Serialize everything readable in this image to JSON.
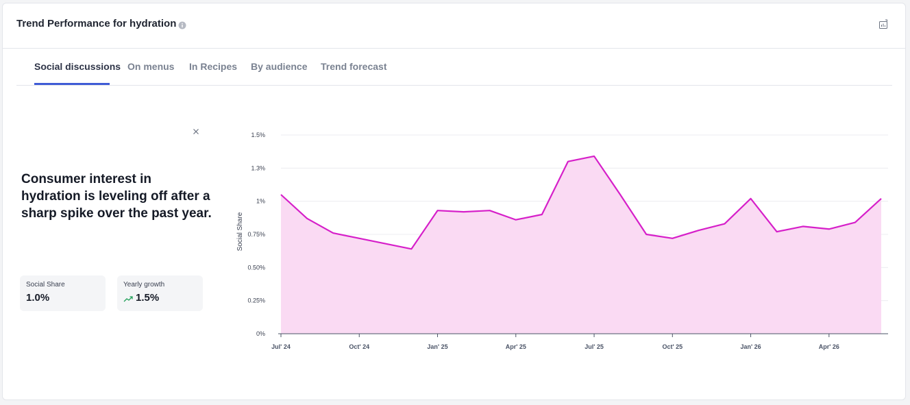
{
  "header": {
    "title": "Trend Performance for hydration",
    "info_icon": "info-circle-icon",
    "export_icon": "export-chart-icon"
  },
  "tabs": [
    {
      "label": "Social discussions",
      "active": true
    },
    {
      "label": "On menus",
      "active": false
    },
    {
      "label": "In Recipes",
      "active": false
    },
    {
      "label": "By audience",
      "active": false
    },
    {
      "label": "Trend forecast",
      "active": false
    }
  ],
  "insight": {
    "headline": "Consumer interest in hydration is leveling off after a sharp spike over the past year.",
    "close_icon": "close-icon"
  },
  "stats": [
    {
      "label": "Social Share",
      "value": "1.0%",
      "icon": null
    },
    {
      "label": "Yearly growth",
      "value": "1.5%",
      "icon": "trend-up-icon"
    }
  ],
  "colors": {
    "accent": "#3f5bd6",
    "line": "#d61fc9",
    "fill": "#fadaf3",
    "trend_up": "#22a05a"
  },
  "chart_data": {
    "type": "area",
    "ylabel": "Social Share",
    "xlabel": "",
    "ylim": [
      0,
      1.5
    ],
    "yticks": [
      0,
      0.25,
      0.5,
      0.75,
      1,
      1.25,
      1.5
    ],
    "ytick_labels": [
      "0%",
      "0.25%",
      "0.50%",
      "0.75%",
      "1%",
      "1.3%",
      "1.5%"
    ],
    "xtick_labels": [
      "Jul' 24",
      "Oct' 24",
      "Jan' 25",
      "Apr' 25",
      "Jul' 25",
      "Oct' 25",
      "Jan' 26",
      "Apr' 26"
    ],
    "xtick_month_index": [
      0,
      3,
      6,
      9,
      12,
      15,
      18,
      21
    ],
    "grid": true,
    "series": [
      {
        "name": "Social Share",
        "x": [
          "2024-07",
          "2024-08",
          "2024-09",
          "2024-10",
          "2024-11",
          "2024-12",
          "2025-01",
          "2025-02",
          "2025-03",
          "2025-04",
          "2025-05",
          "2025-06",
          "2025-07",
          "2025-08",
          "2025-09",
          "2025-10",
          "2025-11",
          "2025-12",
          "2026-01",
          "2026-02",
          "2026-03",
          "2026-04",
          "2026-05",
          "2026-06"
        ],
        "values": [
          1.05,
          0.87,
          0.76,
          0.72,
          0.68,
          0.64,
          0.93,
          0.92,
          0.93,
          0.86,
          0.9,
          1.3,
          1.34,
          1.05,
          0.75,
          0.72,
          0.78,
          0.83,
          1.02,
          0.77,
          0.81,
          0.79,
          0.84,
          1.02
        ]
      }
    ]
  }
}
